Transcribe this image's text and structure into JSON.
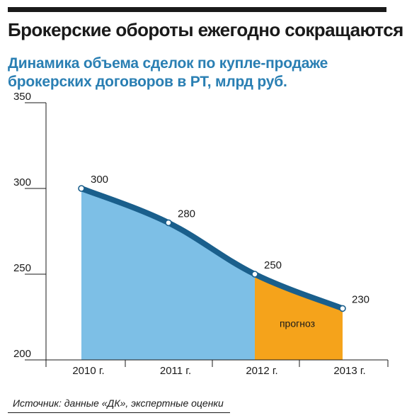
{
  "title": "Брокерские обороты ежегодно сокращаются",
  "subtitle": "Динамика объема сделок по купле-продаже брокерских договоров в РТ, млрд руб.",
  "source": "Источник: данные «ДК», экспертные оценки",
  "colors": {
    "actual_area": "#7dbfe6",
    "forecast_area": "#f5a31b",
    "line": "#1a5f8c",
    "title_blue": "#2a7fb3",
    "text": "#1a1a1a"
  },
  "chart_data": {
    "type": "area",
    "title": "Динамика объема сделок по купле-продаже брокерских договоров в РТ, млрд руб.",
    "categories": [
      "2010 г.",
      "2011 г.",
      "2012 г.",
      "2013 г."
    ],
    "values": [
      300,
      280,
      250,
      230
    ],
    "ylim": [
      200,
      350
    ],
    "yticks": [
      200,
      250,
      300,
      350
    ],
    "forecast_from_index": 2,
    "forecast_label": "прогноз",
    "grid": false,
    "xlabel": "",
    "ylabel": ""
  }
}
